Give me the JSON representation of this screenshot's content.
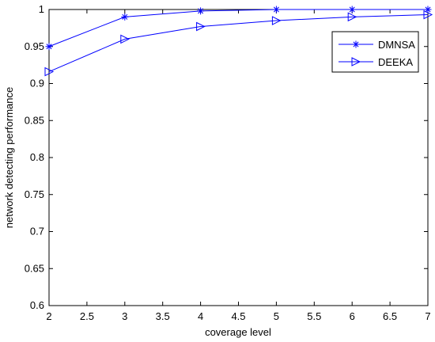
{
  "chart_data": {
    "type": "line",
    "xlabel": "coverage level",
    "ylabel": "network detecting performance",
    "xlim": [
      2,
      7
    ],
    "ylim": [
      0.6,
      1
    ],
    "xticks": [
      "2",
      "2.5",
      "3",
      "3.5",
      "4",
      "4.5",
      "5",
      "5.5",
      "6",
      "6.5",
      "7"
    ],
    "yticks": [
      "0.6",
      "0.65",
      "0.7",
      "0.75",
      "0.8",
      "0.85",
      "0.9",
      "0.95",
      "1"
    ],
    "x": [
      2,
      3,
      4,
      5,
      6,
      7
    ],
    "grid": false,
    "legend_position": "top-right",
    "series": [
      {
        "name": "DMNSA",
        "marker": "asterisk",
        "color": "#0000ff",
        "values": [
          0.95,
          0.99,
          0.998,
          1.0,
          1.0,
          1.0
        ]
      },
      {
        "name": "DEEKA",
        "marker": "triangle-right",
        "color": "#0000ff",
        "values": [
          0.916,
          0.96,
          0.977,
          0.985,
          0.99,
          0.993
        ]
      }
    ]
  }
}
